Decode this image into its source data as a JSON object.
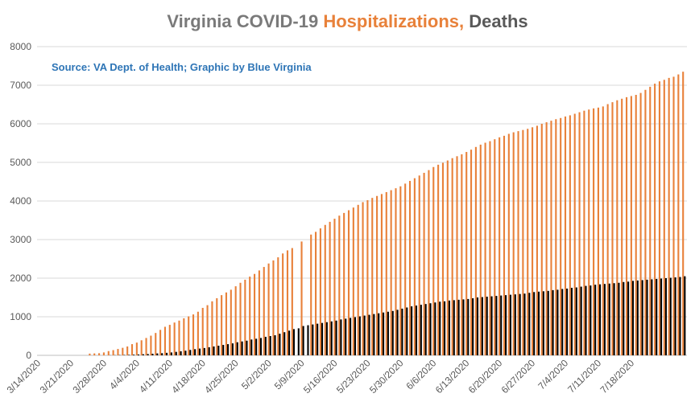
{
  "chart_data": {
    "type": "bar",
    "title_parts": [
      "Virginia COVID-19 ",
      "Hospitalizations,",
      " Deaths"
    ],
    "subtitle": "Source: VA Dept. of Health; Graphic by Blue Virginia",
    "start_date": "2020-03-14",
    "end_date": "2020-07-24",
    "x_tick_labels": [
      "3/14/2020",
      "3/21/2020",
      "3/28/2020",
      "4/4/2020",
      "4/11/2020",
      "4/18/2020",
      "4/25/2020",
      "5/2/2020",
      "5/9/2020",
      "5/16/2020",
      "5/23/2020",
      "5/30/2020",
      "6/6/2020",
      "6/13/2020",
      "6/20/2020",
      "6/27/2020",
      "7/4/2020",
      "7/11/2020",
      "7/18/2020"
    ],
    "ylim": [
      0,
      8000
    ],
    "y_ticks": [
      0,
      1000,
      2000,
      3000,
      4000,
      5000,
      6000,
      7000,
      8000
    ],
    "grid": true,
    "legend": "none",
    "series": [
      {
        "name": "Hospitalizations",
        "color": "#e8813a",
        "values": [
          0,
          0,
          0,
          0,
          0,
          0,
          0,
          0,
          0,
          0,
          0,
          45,
          50,
          55,
          75,
          110,
          135,
          165,
          195,
          230,
          290,
          330,
          390,
          450,
          510,
          580,
          660,
          740,
          790,
          850,
          900,
          960,
          1010,
          1060,
          1130,
          1230,
          1300,
          1400,
          1480,
          1560,
          1630,
          1700,
          1790,
          1880,
          1960,
          2040,
          2110,
          2200,
          2290,
          2380,
          2460,
          2540,
          2640,
          2720,
          2780,
          0,
          2950,
          0,
          3130,
          3200,
          3290,
          3380,
          3460,
          3540,
          3620,
          3690,
          3760,
          3830,
          3900,
          3970,
          4020,
          4080,
          4130,
          4180,
          4230,
          4280,
          4330,
          4380,
          4450,
          4520,
          4590,
          4660,
          4730,
          4800,
          4880,
          4940,
          4990,
          5050,
          5110,
          5160,
          5210,
          5270,
          5330,
          5400,
          5460,
          5510,
          5550,
          5600,
          5650,
          5690,
          5740,
          5780,
          5810,
          5840,
          5870,
          5910,
          5950,
          6000,
          6040,
          6080,
          6120,
          6150,
          6190,
          6220,
          6260,
          6300,
          6340,
          6370,
          6400,
          6420,
          6450,
          6510,
          6560,
          6610,
          6650,
          6690,
          6720,
          6750,
          6800,
          6880,
          6960,
          7040,
          7100,
          7140,
          7190,
          7220,
          7280,
          7350
        ]
      },
      {
        "name": "Deaths",
        "color": "#000000",
        "values": [
          0,
          0,
          0,
          0,
          0,
          0,
          0,
          0,
          0,
          0,
          0,
          0,
          0,
          0,
          0,
          3,
          5,
          8,
          10,
          13,
          17,
          22,
          29,
          34,
          41,
          50,
          56,
          65,
          75,
          90,
          105,
          120,
          140,
          160,
          175,
          190,
          210,
          230,
          250,
          270,
          290,
          310,
          340,
          360,
          380,
          410,
          430,
          450,
          480,
          500,
          520,
          560,
          600,
          640,
          680,
          700,
          760,
          780,
          800,
          820,
          840,
          860,
          880,
          900,
          930,
          950,
          970,
          990,
          1010,
          1030,
          1050,
          1070,
          1090,
          1110,
          1130,
          1150,
          1180,
          1210,
          1240,
          1270,
          1290,
          1310,
          1330,
          1350,
          1370,
          1390,
          1400,
          1420,
          1430,
          1440,
          1450,
          1460,
          1480,
          1500,
          1510,
          1520,
          1530,
          1540,
          1550,
          1560,
          1570,
          1580,
          1590,
          1600,
          1620,
          1640,
          1650,
          1660,
          1670,
          1690,
          1700,
          1720,
          1730,
          1750,
          1760,
          1780,
          1800,
          1810,
          1830,
          1840,
          1850,
          1860,
          1870,
          1880,
          1900,
          1910,
          1930,
          1940,
          1950,
          1960,
          1970,
          1980,
          1990,
          2000,
          2010,
          2020,
          2030,
          2050
        ]
      }
    ]
  }
}
